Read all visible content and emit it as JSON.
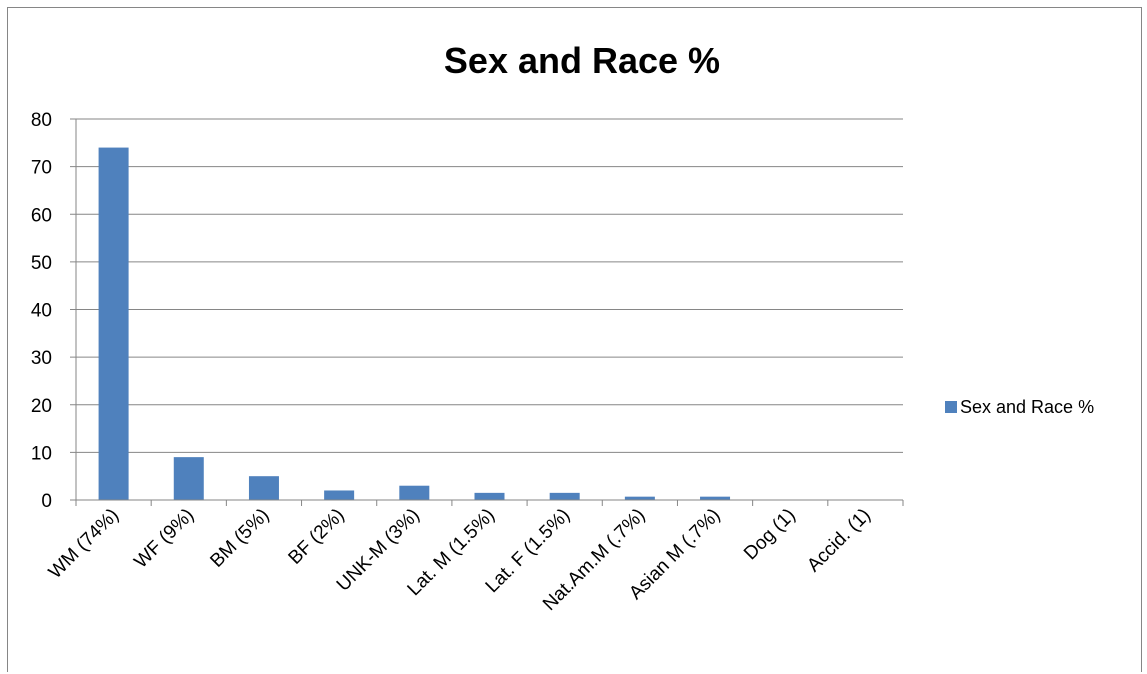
{
  "chart_data": {
    "type": "bar",
    "title": "Sex and Race %",
    "categories": [
      "WM (74%)",
      "WF (9%)",
      "BM (5%)",
      "BF (2%)",
      "UNK-M (3%)",
      "Lat. M (1.5%)",
      "Lat. F (1.5%)",
      "Nat.Am.M (.7%)",
      "Asian M (.7%)",
      "Dog (1)",
      "Accid. (1)"
    ],
    "series": [
      {
        "name": "Sex and Race %",
        "values": [
          74,
          9,
          5,
          2,
          3,
          1.5,
          1.5,
          0.7,
          0.7,
          0,
          0
        ]
      }
    ],
    "yticks": [
      "0",
      "10",
      "20",
      "30",
      "40",
      "50",
      "60",
      "70",
      "80"
    ],
    "ylim": [
      0,
      80
    ],
    "grid": true,
    "legend_position": "right",
    "bar_color": "#4f81bd"
  }
}
